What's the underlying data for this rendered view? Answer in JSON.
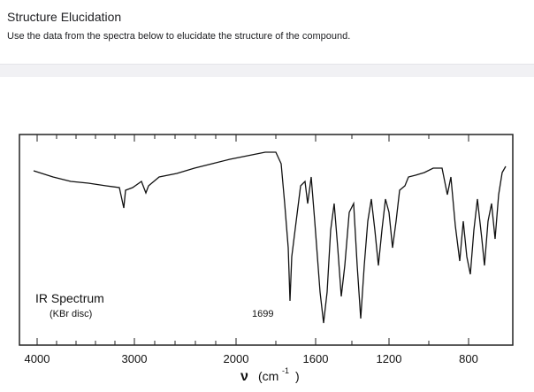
{
  "header": {
    "title": "Structure Elucidation",
    "instructions": "Use the data from the spectra below to elucidate the structure of the compound."
  },
  "spectrum": {
    "label": "IR Spectrum",
    "sublabel": "(KBr disc)",
    "peak_label": "1699",
    "x_tick_labels": [
      "4000",
      "3000",
      "2000",
      "1600",
      "1200",
      "800"
    ],
    "axis_symbol": "ν",
    "axis_unit": "(cm",
    "axis_exponent": "-1",
    "axis_close": ")"
  }
}
